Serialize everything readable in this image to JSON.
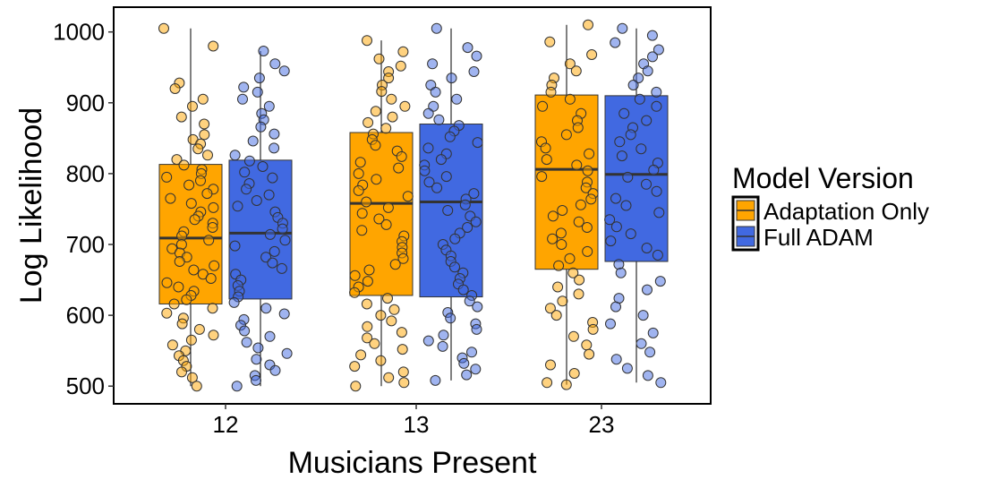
{
  "chart_data": {
    "type": "boxplot",
    "xlabel": "Musicians Present",
    "ylabel": "Log Likelihood",
    "categories": [
      "12",
      "13",
      "23"
    ],
    "ylim": [
      475,
      1035
    ],
    "yticks": [
      500,
      600,
      700,
      800,
      900,
      1000
    ],
    "grid": false,
    "legend": {
      "title": "Model Version",
      "position": "right",
      "entries": [
        "Adaptation Only",
        "Full ADAM"
      ]
    },
    "series": [
      {
        "name": "Adaptation Only",
        "color": "#FFA500",
        "boxes": [
          {
            "category": "12",
            "q1": 616,
            "median": 709,
            "q3": 813,
            "whisker_low": 500,
            "whisker_high": 1005
          },
          {
            "category": "13",
            "q1": 628,
            "median": 758,
            "q3": 858,
            "whisker_low": 500,
            "whisker_high": 988
          },
          {
            "category": "23",
            "q1": 665,
            "median": 806,
            "q3": 911,
            "whisker_low": 502,
            "whisker_high": 1010
          }
        ]
      },
      {
        "name": "Full ADAM",
        "color": "#4169E1",
        "boxes": [
          {
            "category": "12",
            "q1": 623,
            "median": 716,
            "q3": 819,
            "whisker_low": 500,
            "whisker_high": 973
          },
          {
            "category": "13",
            "q1": 626,
            "median": 760,
            "q3": 870,
            "whisker_low": 508,
            "whisker_high": 1005
          },
          {
            "category": "23",
            "q1": 676,
            "median": 799,
            "q3": 910,
            "whisker_low": 505,
            "whisker_high": 1005
          }
        ]
      }
    ],
    "points": {
      "Adaptation Only": {
        "12": [
          1005,
          980,
          928,
          920,
          905,
          895,
          880,
          870,
          855,
          848,
          842,
          835,
          826,
          820,
          812,
          806,
          800,
          795,
          790,
          784,
          778,
          772,
          765,
          758,
          752,
          746,
          740,
          735,
          730,
          724,
          718,
          712,
          706,
          700,
          694,
          688,
          682,
          676,
          670,
          664,
          658,
          652,
          646,
          640,
          634,
          628,
          622,
          616,
          610,
          603,
          596,
          588,
          580,
          572,
          565,
          558,
          550,
          543,
          536,
          528,
          520,
          512,
          500
        ],
        "13": [
          988,
          972,
          962,
          952,
          944,
          935,
          925,
          916,
          905,
          895,
          888,
          880,
          872,
          864,
          856,
          848,
          840,
          832,
          824,
          816,
          808,
          800,
          792,
          784,
          776,
          768,
          760,
          752,
          744,
          736,
          728,
          720,
          712,
          704,
          696,
          688,
          680,
          672,
          664,
          656,
          648,
          640,
          632,
          624,
          616,
          608,
          600,
          592,
          584,
          576,
          568,
          560,
          552,
          544,
          536,
          528,
          520,
          512,
          505,
          500
        ],
        "23": [
          1010,
          986,
          968,
          955,
          945,
          935,
          925,
          915,
          905,
          895,
          885,
          875,
          865,
          855,
          845,
          836,
          828,
          820,
          812,
          804,
          796,
          788,
          780,
          772,
          764,
          756,
          748,
          740,
          732,
          724,
          716,
          708,
          700,
          690,
          680,
          670,
          660,
          650,
          640,
          630,
          620,
          610,
          600,
          590,
          580,
          570,
          558,
          545,
          530,
          518,
          505,
          502
        ]
      },
      "Full ADAM": {
        "12": [
          973,
          955,
          945,
          935,
          922,
          915,
          905,
          895,
          885,
          876,
          866,
          856,
          846,
          836,
          826,
          818,
          810,
          802,
          794,
          786,
          778,
          770,
          762,
          754,
          746,
          738,
          730,
          722,
          714,
          706,
          698,
          690,
          682,
          674,
          666,
          658,
          650,
          642,
          634,
          626,
          618,
          610,
          602,
          594,
          586,
          578,
          570,
          562,
          554,
          546,
          538,
          530,
          522,
          515,
          508,
          500
        ],
        "13": [
          1005,
          978,
          966,
          955,
          944,
          935,
          925,
          915,
          905,
          895,
          885,
          876,
          868,
          860,
          852,
          844,
          836,
          828,
          820,
          812,
          804,
          796,
          788,
          780,
          772,
          764,
          756,
          748,
          740,
          732,
          724,
          716,
          708,
          700,
          692,
          684,
          676,
          668,
          660,
          652,
          644,
          636,
          628,
          620,
          612,
          604,
          596,
          588,
          580,
          572,
          564,
          556,
          548,
          540,
          532,
          524,
          516,
          508
        ],
        "23": [
          1005,
          995,
          985,
          975,
          965,
          955,
          945,
          935,
          925,
          915,
          905,
          895,
          885,
          875,
          865,
          855,
          845,
          835,
          825,
          815,
          805,
          795,
          785,
          775,
          765,
          755,
          745,
          735,
          725,
          715,
          705,
          695,
          685,
          672,
          660,
          648,
          636,
          624,
          612,
          600,
          588,
          575,
          560,
          548,
          538,
          525,
          515,
          505
        ]
      }
    }
  }
}
